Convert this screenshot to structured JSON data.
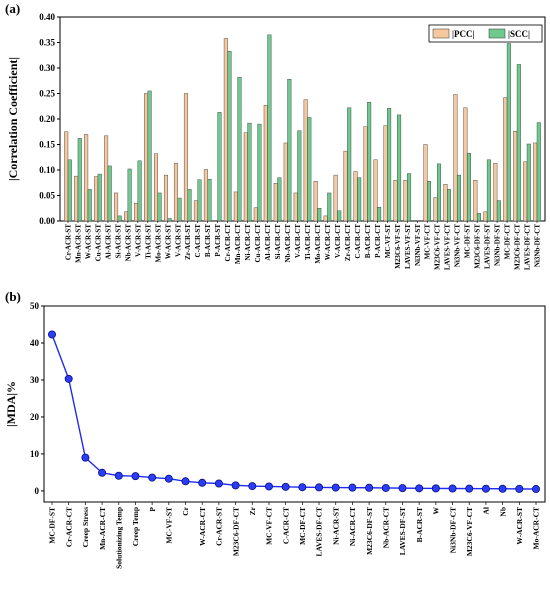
{
  "chart_data": [
    {
      "type": "bar",
      "panel_label": "(a)",
      "title": "",
      "xlabel": "",
      "ylabel": "|Correlation Coefficient|",
      "ylim": [
        0,
        0.4
      ],
      "yticks": [
        "0.00",
        "0.05",
        "0.10",
        "0.15",
        "0.20",
        "0.25",
        "0.30",
        "0.35",
        "0.40"
      ],
      "legend_position": "top-right",
      "categories": [
        "Cr-ACR-ST",
        "Mn-ACR-ST",
        "W-ACR-ST",
        "Cu-ACR-ST",
        "Al-ACR-ST",
        "Si-ACR-ST",
        "Nb-ACR-ST",
        "V-ACR-ST",
        "Ti-ACR-ST",
        "Mo-ACR-ST",
        "W-ACR-ST",
        "V-ACR-ST",
        "Zr-ACR-ST",
        "C-ACR-ST",
        "B-ACR-ST",
        "P-ACR-ST",
        "Cr-ACR-CT",
        "Mn-ACR-CT",
        "Ni-ACR-CT",
        "Cu-ACR-CT",
        "Al-ACR-CT",
        "Si-ACR-CT",
        "Nb-ACR-CT",
        "V-ACR-CT",
        "Ti-ACR-CT",
        "Mo-ACR-CT",
        "W-ACR-CT",
        "V-ACR-CT",
        "Zr-ACR-CT",
        "C-ACR-CT",
        "B-ACR-CT",
        "P-ACR-CT",
        "MC-VF-ST",
        "M23C6-VF-ST",
        "LAVES-VF-ST",
        "Ni3Nb-VF-ST",
        "MC-VF-CT",
        "M23C6-VF-CT",
        "LAVES-VF-CT",
        "Ni3Nb-VF-CT",
        "MC-DF-ST",
        "M23C6-DF-ST",
        "LAVES-DF-ST",
        "Ni3Nb-DF-ST",
        "MC-DF-CT",
        "M23C6-DF-CT",
        "LAVES-DF-CT",
        "Ni3Nb-DF-CT"
      ],
      "series": [
        {
          "name": "|PCC|",
          "color": "#f5c8a0",
          "values": [
            0.175,
            0.088,
            0.17,
            0.087,
            0.167,
            0.055,
            0.018,
            0.035,
            0.25,
            0.132,
            0.09,
            0.113,
            0.25,
            0.04,
            0.101,
            0.001,
            0.358,
            0.057,
            0.173,
            0.026,
            0.227,
            0.074,
            0.153,
            0.055,
            0.238,
            0.078,
            0.01,
            0.09,
            0.137,
            0.097,
            0.185,
            0.12,
            0.187,
            0.08,
            0.08,
            0.0,
            0.15,
            0.046,
            0.072,
            0.248,
            0.222,
            0.08,
            0.018,
            0.113,
            0.242,
            0.176,
            0.116,
            0.153
          ]
        },
        {
          "name": "|SCC|",
          "color": "#6ec98f",
          "values": [
            0.12,
            0.162,
            0.062,
            0.092,
            0.108,
            0.01,
            0.102,
            0.118,
            0.255,
            0.055,
            0.005,
            0.045,
            0.062,
            0.081,
            0.082,
            0.213,
            0.333,
            0.282,
            0.192,
            0.19,
            0.365,
            0.085,
            0.278,
            0.177,
            0.203,
            0.025,
            0.055,
            0.02,
            0.222,
            0.085,
            0.233,
            0.027,
            0.221,
            0.208,
            0.093,
            0.0,
            0.078,
            0.112,
            0.062,
            0.09,
            0.133,
            0.015,
            0.12,
            0.04,
            0.348,
            0.307,
            0.151,
            0.193
          ]
        }
      ]
    },
    {
      "type": "line",
      "panel_label": "(b)",
      "title": "",
      "xlabel": "",
      "ylabel": "|MDA|%",
      "ylim": [
        -3,
        50
      ],
      "yticks": [
        "0",
        "10",
        "20",
        "30",
        "40",
        "50"
      ],
      "categories": [
        "MC-DF-ST",
        "Cr-ACR-CT",
        "Creep Stress",
        "Mn-ACR-CT",
        "Solutionizing Temp",
        "Creep Temp",
        "P",
        "MC-VF-ST",
        "Cr",
        "W-ACR-CT",
        "Cr-ACR-ST",
        "M23C6-DF-CT",
        "Zr",
        "MC-VF-CT",
        "C-ACR-CT",
        "MC-DF-CT",
        "LAVES-DF-CT",
        "Ni-ACR-ST",
        "Ni-ACR-CT",
        "M23C6-DF-ST",
        "Nb-ACR-CT",
        "LAVES-DF-ST",
        "B-ACR-ST",
        "W",
        "Ni3Nb-DF-CT",
        "M23C6-VF-CT",
        "Al",
        "Nb",
        "W-ACR-ST",
        "Mo-ACR-CT"
      ],
      "series": [
        {
          "name": "",
          "color": "#1e2cf0",
          "values": [
            42.3,
            30.3,
            9.0,
            4.9,
            4.1,
            4.0,
            3.6,
            3.3,
            2.6,
            2.2,
            2.0,
            1.5,
            1.3,
            1.2,
            1.1,
            1.0,
            0.95,
            0.9,
            0.88,
            0.85,
            0.8,
            0.75,
            0.7,
            0.68,
            0.65,
            0.62,
            0.6,
            0.58,
            0.55,
            0.5
          ]
        }
      ]
    }
  ]
}
